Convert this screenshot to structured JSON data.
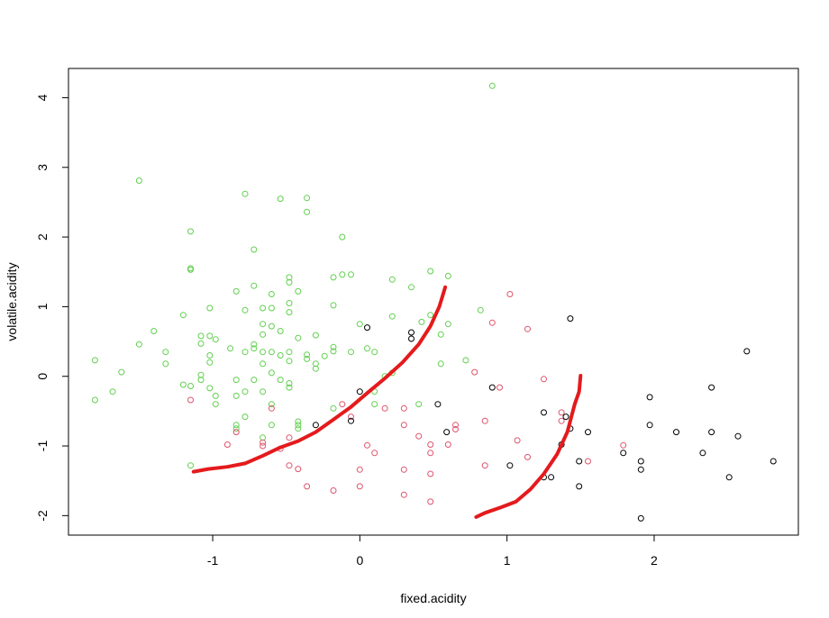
{
  "chart_data": {
    "type": "scatter",
    "title": "",
    "xlabel": "fixed.acidity",
    "ylabel": "volatile.acidity",
    "xlim": [
      -1.98,
      2.98
    ],
    "ylim": [
      -2.28,
      4.42
    ],
    "xticks": [
      -1,
      0,
      1,
      2
    ],
    "yticks": [
      -2,
      -1,
      0,
      1,
      2,
      3,
      4
    ],
    "grid": false,
    "legend": "none",
    "series": [
      {
        "color": "#61D04F",
        "marker": "open-circle",
        "points": [
          [
            -1.8,
            0.23
          ],
          [
            -1.8,
            -0.34
          ],
          [
            -1.68,
            -0.22
          ],
          [
            -1.62,
            0.06
          ],
          [
            -1.5,
            2.81
          ],
          [
            -1.5,
            0.46
          ],
          [
            -1.4,
            0.65
          ],
          [
            -1.32,
            0.35
          ],
          [
            -1.32,
            0.18
          ],
          [
            -1.2,
            0.88
          ],
          [
            -1.2,
            -0.12
          ],
          [
            -1.15,
            2.08
          ],
          [
            -1.15,
            1.55
          ],
          [
            -1.15,
            1.53
          ],
          [
            -1.15,
            -0.14
          ],
          [
            -1.15,
            -1.28
          ],
          [
            -1.08,
            0.58
          ],
          [
            -1.08,
            0.47
          ],
          [
            -1.08,
            0.02
          ],
          [
            -1.08,
            -0.05
          ],
          [
            -1.02,
            0.98
          ],
          [
            -1.02,
            0.58
          ],
          [
            -1.02,
            0.3
          ],
          [
            -1.02,
            0.2
          ],
          [
            -1.02,
            -0.17
          ],
          [
            -0.98,
            0.53
          ],
          [
            -0.98,
            -0.28
          ],
          [
            -0.98,
            -0.4
          ],
          [
            -0.88,
            0.4
          ],
          [
            -0.84,
            1.22
          ],
          [
            -0.84,
            -0.05
          ],
          [
            -0.84,
            -0.28
          ],
          [
            -0.84,
            -0.7
          ],
          [
            -0.84,
            -0.75
          ],
          [
            -0.78,
            2.62
          ],
          [
            -0.78,
            0.95
          ],
          [
            -0.78,
            0.35
          ],
          [
            -0.78,
            -0.22
          ],
          [
            -0.78,
            -0.58
          ],
          [
            -0.72,
            1.82
          ],
          [
            -0.72,
            1.3
          ],
          [
            -0.72,
            0.46
          ],
          [
            -0.72,
            0.4
          ],
          [
            -0.72,
            -0.05
          ],
          [
            -0.66,
            0.98
          ],
          [
            -0.66,
            0.75
          ],
          [
            -0.66,
            0.6
          ],
          [
            -0.66,
            0.35
          ],
          [
            -0.66,
            0.18
          ],
          [
            -0.66,
            -0.22
          ],
          [
            -0.66,
            -0.88
          ],
          [
            -0.6,
            1.18
          ],
          [
            -0.6,
            0.98
          ],
          [
            -0.6,
            0.72
          ],
          [
            -0.6,
            0.35
          ],
          [
            -0.6,
            0.05
          ],
          [
            -0.6,
            -0.4
          ],
          [
            -0.6,
            -0.7
          ],
          [
            -0.54,
            2.55
          ],
          [
            -0.54,
            0.65
          ],
          [
            -0.54,
            0.3
          ],
          [
            -0.54,
            -0.05
          ],
          [
            -0.48,
            1.42
          ],
          [
            -0.48,
            1.35
          ],
          [
            -0.48,
            1.05
          ],
          [
            -0.48,
            0.92
          ],
          [
            -0.48,
            0.35
          ],
          [
            -0.48,
            0.22
          ],
          [
            -0.48,
            -0.1
          ],
          [
            -0.48,
            -0.16
          ],
          [
            -0.42,
            1.22
          ],
          [
            -0.42,
            0.55
          ],
          [
            -0.42,
            -0.65
          ],
          [
            -0.42,
            -0.7
          ],
          [
            -0.42,
            -0.75
          ],
          [
            -0.36,
            2.56
          ],
          [
            -0.36,
            2.36
          ],
          [
            -0.36,
            0.31
          ],
          [
            -0.36,
            0.25
          ],
          [
            -0.3,
            0.59
          ],
          [
            -0.3,
            0.18
          ],
          [
            -0.3,
            0.11
          ],
          [
            -0.24,
            0.29
          ],
          [
            -0.18,
            1.42
          ],
          [
            -0.18,
            1.02
          ],
          [
            -0.18,
            0.42
          ],
          [
            -0.18,
            0.36
          ],
          [
            -0.18,
            -0.46
          ],
          [
            -0.12,
            2.0
          ],
          [
            -0.12,
            1.46
          ],
          [
            -0.06,
            1.46
          ],
          [
            -0.06,
            0.35
          ],
          [
            0.0,
            0.75
          ],
          [
            0.05,
            0.4
          ],
          [
            0.1,
            0.35
          ],
          [
            0.1,
            -0.22
          ],
          [
            0.1,
            -0.4
          ],
          [
            0.17,
            0.0
          ],
          [
            0.22,
            1.39
          ],
          [
            0.22,
            0.86
          ],
          [
            0.22,
            0.05
          ],
          [
            0.35,
            1.28
          ],
          [
            0.4,
            -0.4
          ],
          [
            0.42,
            0.78
          ],
          [
            0.48,
            1.51
          ],
          [
            0.48,
            0.88
          ],
          [
            0.55,
            0.6
          ],
          [
            0.55,
            0.18
          ],
          [
            0.6,
            1.44
          ],
          [
            0.6,
            0.75
          ],
          [
            0.72,
            0.23
          ],
          [
            0.82,
            0.95
          ],
          [
            0.9,
            4.17
          ]
        ]
      },
      {
        "color": "#DF536B",
        "marker": "open-circle",
        "points": [
          [
            -1.15,
            -0.34
          ],
          [
            -0.9,
            -0.98
          ],
          [
            -0.84,
            -0.8
          ],
          [
            -0.6,
            -0.46
          ],
          [
            -0.66,
            -0.95
          ],
          [
            -0.66,
            -1.0
          ],
          [
            -0.54,
            -1.04
          ],
          [
            -0.48,
            -0.88
          ],
          [
            -0.48,
            -1.28
          ],
          [
            -0.42,
            -1.33
          ],
          [
            -0.36,
            -1.58
          ],
          [
            -0.18,
            -1.64
          ],
          [
            -0.12,
            -0.4
          ],
          [
            -0.06,
            -0.58
          ],
          [
            0.0,
            -1.34
          ],
          [
            0.0,
            -1.58
          ],
          [
            0.05,
            -0.99
          ],
          [
            0.1,
            -1.1
          ],
          [
            0.17,
            -0.46
          ],
          [
            0.3,
            -0.46
          ],
          [
            0.3,
            -0.7
          ],
          [
            0.3,
            -1.34
          ],
          [
            0.3,
            -1.7
          ],
          [
            0.4,
            -0.86
          ],
          [
            0.48,
            -0.98
          ],
          [
            0.48,
            -1.1
          ],
          [
            0.48,
            -1.4
          ],
          [
            0.48,
            -1.8
          ],
          [
            0.6,
            -0.98
          ],
          [
            0.65,
            -0.7
          ],
          [
            0.65,
            -0.76
          ],
          [
            0.78,
            0.06
          ],
          [
            0.85,
            -0.64
          ],
          [
            0.85,
            -1.28
          ],
          [
            0.9,
            0.77
          ],
          [
            0.95,
            -0.16
          ],
          [
            1.02,
            1.18
          ],
          [
            1.07,
            -0.92
          ],
          [
            1.14,
            0.68
          ],
          [
            1.14,
            -1.16
          ],
          [
            1.25,
            -0.04
          ],
          [
            1.37,
            -0.52
          ],
          [
            1.37,
            -0.64
          ],
          [
            1.55,
            -1.22
          ],
          [
            1.79,
            -0.99
          ]
        ]
      },
      {
        "color": "#000000",
        "marker": "open-circle",
        "points": [
          [
            -0.3,
            -0.7
          ],
          [
            0.0,
            -0.22
          ],
          [
            0.05,
            0.7
          ],
          [
            -0.06,
            -0.64
          ],
          [
            0.35,
            0.63
          ],
          [
            0.35,
            0.54
          ],
          [
            0.53,
            -0.4
          ],
          [
            0.59,
            -0.8
          ],
          [
            0.9,
            -0.16
          ],
          [
            1.02,
            -1.28
          ],
          [
            1.25,
            -0.52
          ],
          [
            1.25,
            -1.45
          ],
          [
            1.3,
            -1.45
          ],
          [
            1.37,
            -0.98
          ],
          [
            1.4,
            -0.58
          ],
          [
            1.43,
            0.83
          ],
          [
            1.43,
            -0.75
          ],
          [
            1.49,
            -1.22
          ],
          [
            1.49,
            -1.58
          ],
          [
            1.55,
            -0.8
          ],
          [
            1.79,
            -1.1
          ],
          [
            1.91,
            -1.22
          ],
          [
            1.91,
            -1.34
          ],
          [
            1.91,
            -2.04
          ],
          [
            1.97,
            -0.3
          ],
          [
            1.97,
            -0.7
          ],
          [
            2.15,
            -0.8
          ],
          [
            2.33,
            -1.1
          ],
          [
            2.39,
            -0.16
          ],
          [
            2.39,
            -0.8
          ],
          [
            2.51,
            -1.45
          ],
          [
            2.57,
            -0.86
          ],
          [
            2.63,
            0.36
          ],
          [
            2.81,
            -1.22
          ]
        ]
      }
    ],
    "lines": [
      {
        "color": "#E41A1C",
        "points": [
          [
            -1.13,
            -1.37
          ],
          [
            -1.03,
            -1.33
          ],
          [
            -0.9,
            -1.3
          ],
          [
            -0.78,
            -1.25
          ],
          [
            -0.66,
            -1.14
          ],
          [
            -0.54,
            -1.02
          ],
          [
            -0.42,
            -0.93
          ],
          [
            -0.3,
            -0.8
          ],
          [
            -0.18,
            -0.62
          ],
          [
            -0.06,
            -0.44
          ],
          [
            0.05,
            -0.24
          ],
          [
            0.17,
            -0.03
          ],
          [
            0.29,
            0.2
          ],
          [
            0.4,
            0.46
          ],
          [
            0.48,
            0.72
          ],
          [
            0.54,
            1.0
          ],
          [
            0.58,
            1.28
          ]
        ]
      },
      {
        "color": "#E41A1C",
        "points": [
          [
            0.79,
            -2.02
          ],
          [
            0.85,
            -1.96
          ],
          [
            0.96,
            -1.88
          ],
          [
            1.06,
            -1.8
          ],
          [
            1.16,
            -1.62
          ],
          [
            1.25,
            -1.4
          ],
          [
            1.34,
            -1.12
          ],
          [
            1.41,
            -0.8
          ],
          [
            1.46,
            -0.4
          ],
          [
            1.49,
            -0.22
          ],
          [
            1.5,
            0.01
          ]
        ]
      }
    ]
  }
}
